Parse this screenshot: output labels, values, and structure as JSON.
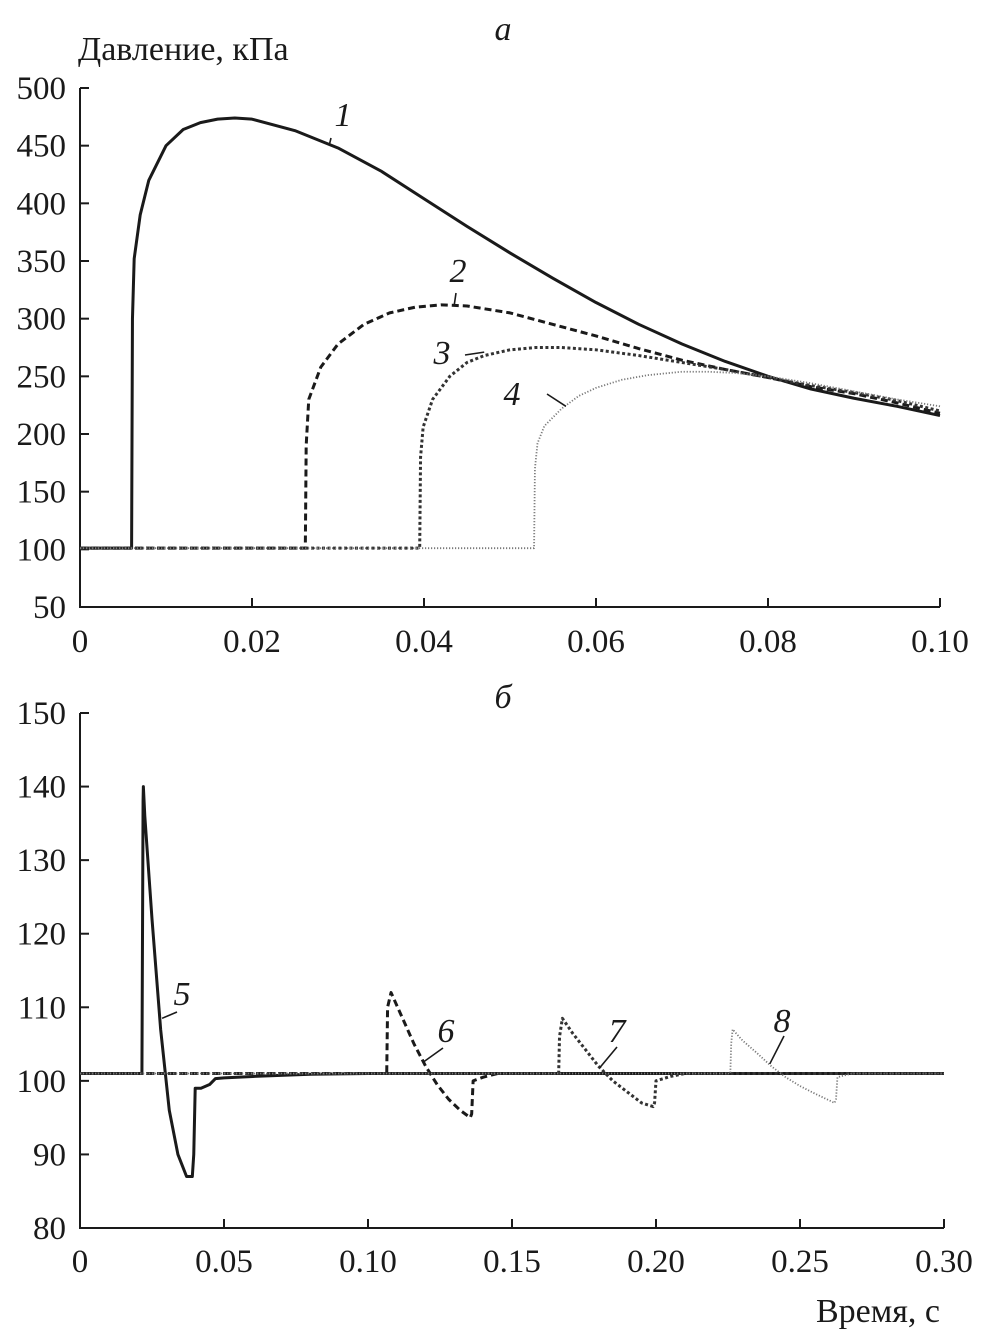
{
  "chart_data": [
    {
      "type": "line",
      "panel_label": "а",
      "ylabel": "Давление, кПа",
      "xlabel": "",
      "xlim": [
        0,
        0.1
      ],
      "ylim": [
        50,
        500
      ],
      "x_ticks": [
        0,
        0.02,
        0.04,
        0.06,
        0.08,
        0.1
      ],
      "x_tick_labels": [
        "0",
        "0.02",
        "0.04",
        "0.06",
        "0.08",
        "0.10"
      ],
      "y_ticks": [
        50,
        100,
        150,
        200,
        250,
        300,
        350,
        400,
        450,
        500
      ],
      "y_tick_labels": [
        "50",
        "100",
        "150",
        "200",
        "250",
        "300",
        "350",
        "400",
        "450",
        "500"
      ],
      "grid": false,
      "series": [
        {
          "label": "1",
          "style": "solid",
          "color": "#1a1a1a",
          "x": [
            0,
            0.006,
            0.0061,
            0.0063,
            0.007,
            0.008,
            0.01,
            0.012,
            0.014,
            0.016,
            0.018,
            0.02,
            0.025,
            0.03,
            0.035,
            0.04,
            0.045,
            0.05,
            0.055,
            0.06,
            0.065,
            0.07,
            0.075,
            0.08,
            0.085,
            0.09,
            0.095,
            0.1
          ],
          "y": [
            101,
            101,
            300,
            352,
            390,
            420,
            450,
            464,
            470,
            473,
            474,
            473,
            463,
            448,
            428,
            404,
            380,
            357,
            335,
            314,
            295,
            278,
            263,
            250,
            239,
            231,
            224,
            216
          ]
        },
        {
          "label": "2",
          "style": "dashed",
          "color": "#1a1a1a",
          "x": [
            0,
            0.0262,
            0.0263,
            0.0266,
            0.028,
            0.03,
            0.033,
            0.036,
            0.039,
            0.042,
            0.045,
            0.05,
            0.055,
            0.06,
            0.065,
            0.07,
            0.075,
            0.08,
            0.085,
            0.09,
            0.095,
            0.1
          ],
          "y": [
            101,
            101,
            190,
            230,
            258,
            278,
            295,
            305,
            310,
            312,
            311,
            305,
            295,
            285,
            274,
            264,
            256,
            249,
            241,
            235,
            227,
            218
          ]
        },
        {
          "label": "3",
          "style": "dotted",
          "color": "#333333",
          "x": [
            0,
            0.0395,
            0.0396,
            0.0399,
            0.041,
            0.043,
            0.045,
            0.047,
            0.05,
            0.053,
            0.056,
            0.06,
            0.065,
            0.07,
            0.075,
            0.08,
            0.085,
            0.09,
            0.095,
            0.1
          ],
          "y": [
            101,
            101,
            180,
            206,
            230,
            250,
            262,
            268,
            273,
            275,
            275,
            273,
            268,
            262,
            256,
            249,
            242,
            236,
            229,
            220
          ]
        },
        {
          "label": "4",
          "style": "fine-dotted",
          "color": "#7a7a7a",
          "x": [
            0,
            0.0528,
            0.0529,
            0.0532,
            0.054,
            0.056,
            0.058,
            0.06,
            0.063,
            0.066,
            0.07,
            0.073,
            0.076,
            0.08,
            0.085,
            0.09,
            0.095,
            0.1
          ],
          "y": [
            101,
            101,
            170,
            192,
            207,
            222,
            233,
            240,
            247,
            251,
            254,
            254,
            253,
            250,
            244,
            237,
            230,
            224
          ]
        }
      ]
    },
    {
      "type": "line",
      "panel_label": "б",
      "ylabel": "",
      "xlabel": "Время, с",
      "xlim": [
        0,
        0.3
      ],
      "ylim": [
        80,
        150
      ],
      "x_ticks": [
        0,
        0.05,
        0.1,
        0.15,
        0.2,
        0.25,
        0.3
      ],
      "x_tick_labels": [
        "0",
        "0.05",
        "0.10",
        "0.15",
        "0.20",
        "0.25",
        "0.30"
      ],
      "y_ticks": [
        80,
        90,
        100,
        110,
        120,
        130,
        140,
        150
      ],
      "y_tick_labels": [
        "80",
        "90",
        "100",
        "110",
        "120",
        "130",
        "140",
        "150"
      ],
      "grid": false,
      "series": [
        {
          "label": "5",
          "style": "solid",
          "color": "#1a1a1a",
          "x": [
            0,
            0.0215,
            0.0219,
            0.022,
            0.0225,
            0.025,
            0.028,
            0.031,
            0.034,
            0.037,
            0.039,
            0.0395,
            0.04,
            0.042,
            0.045,
            0.047,
            0.05,
            0.06,
            0.08,
            0.1,
            0.3
          ],
          "y": [
            101,
            101,
            138,
            140,
            136,
            122,
            107,
            96,
            90,
            87,
            87,
            90,
            99,
            99,
            99.5,
            100.3,
            100.4,
            100.6,
            100.9,
            101,
            101
          ]
        },
        {
          "label": "6",
          "style": "dashed",
          "color": "#1a1a1a",
          "x": [
            0,
            0.1065,
            0.1068,
            0.108,
            0.112,
            0.116,
            0.12,
            0.124,
            0.128,
            0.132,
            0.1355,
            0.136,
            0.1365,
            0.14,
            0.145,
            0.3
          ],
          "y": [
            101,
            101,
            110,
            112,
            108.5,
            105,
            102,
            99.5,
            97.5,
            96,
            95,
            95.5,
            100,
            100.5,
            101,
            101
          ]
        },
        {
          "label": "7",
          "style": "dotted",
          "color": "#333333",
          "x": [
            0,
            0.1662,
            0.1665,
            0.1675,
            0.171,
            0.175,
            0.18,
            0.185,
            0.19,
            0.195,
            0.199,
            0.1995,
            0.2,
            0.205,
            0.21,
            0.3
          ],
          "y": [
            101,
            101,
            106,
            108.5,
            106.5,
            104.5,
            102,
            100,
            98.5,
            97,
            96.5,
            97,
            100,
            100.6,
            101,
            101
          ]
        },
        {
          "label": "8",
          "style": "fine-dotted",
          "color": "#7a7a7a",
          "x": [
            0,
            0.2258,
            0.2261,
            0.2266,
            0.23,
            0.235,
            0.24,
            0.245,
            0.25,
            0.255,
            0.262,
            0.2625,
            0.263,
            0.268,
            0.3
          ],
          "y": [
            101,
            101,
            105,
            107,
            105.5,
            103.8,
            102,
            100.5,
            99.3,
            98.3,
            97,
            97.5,
            100.5,
            101,
            101
          ]
        }
      ]
    }
  ]
}
